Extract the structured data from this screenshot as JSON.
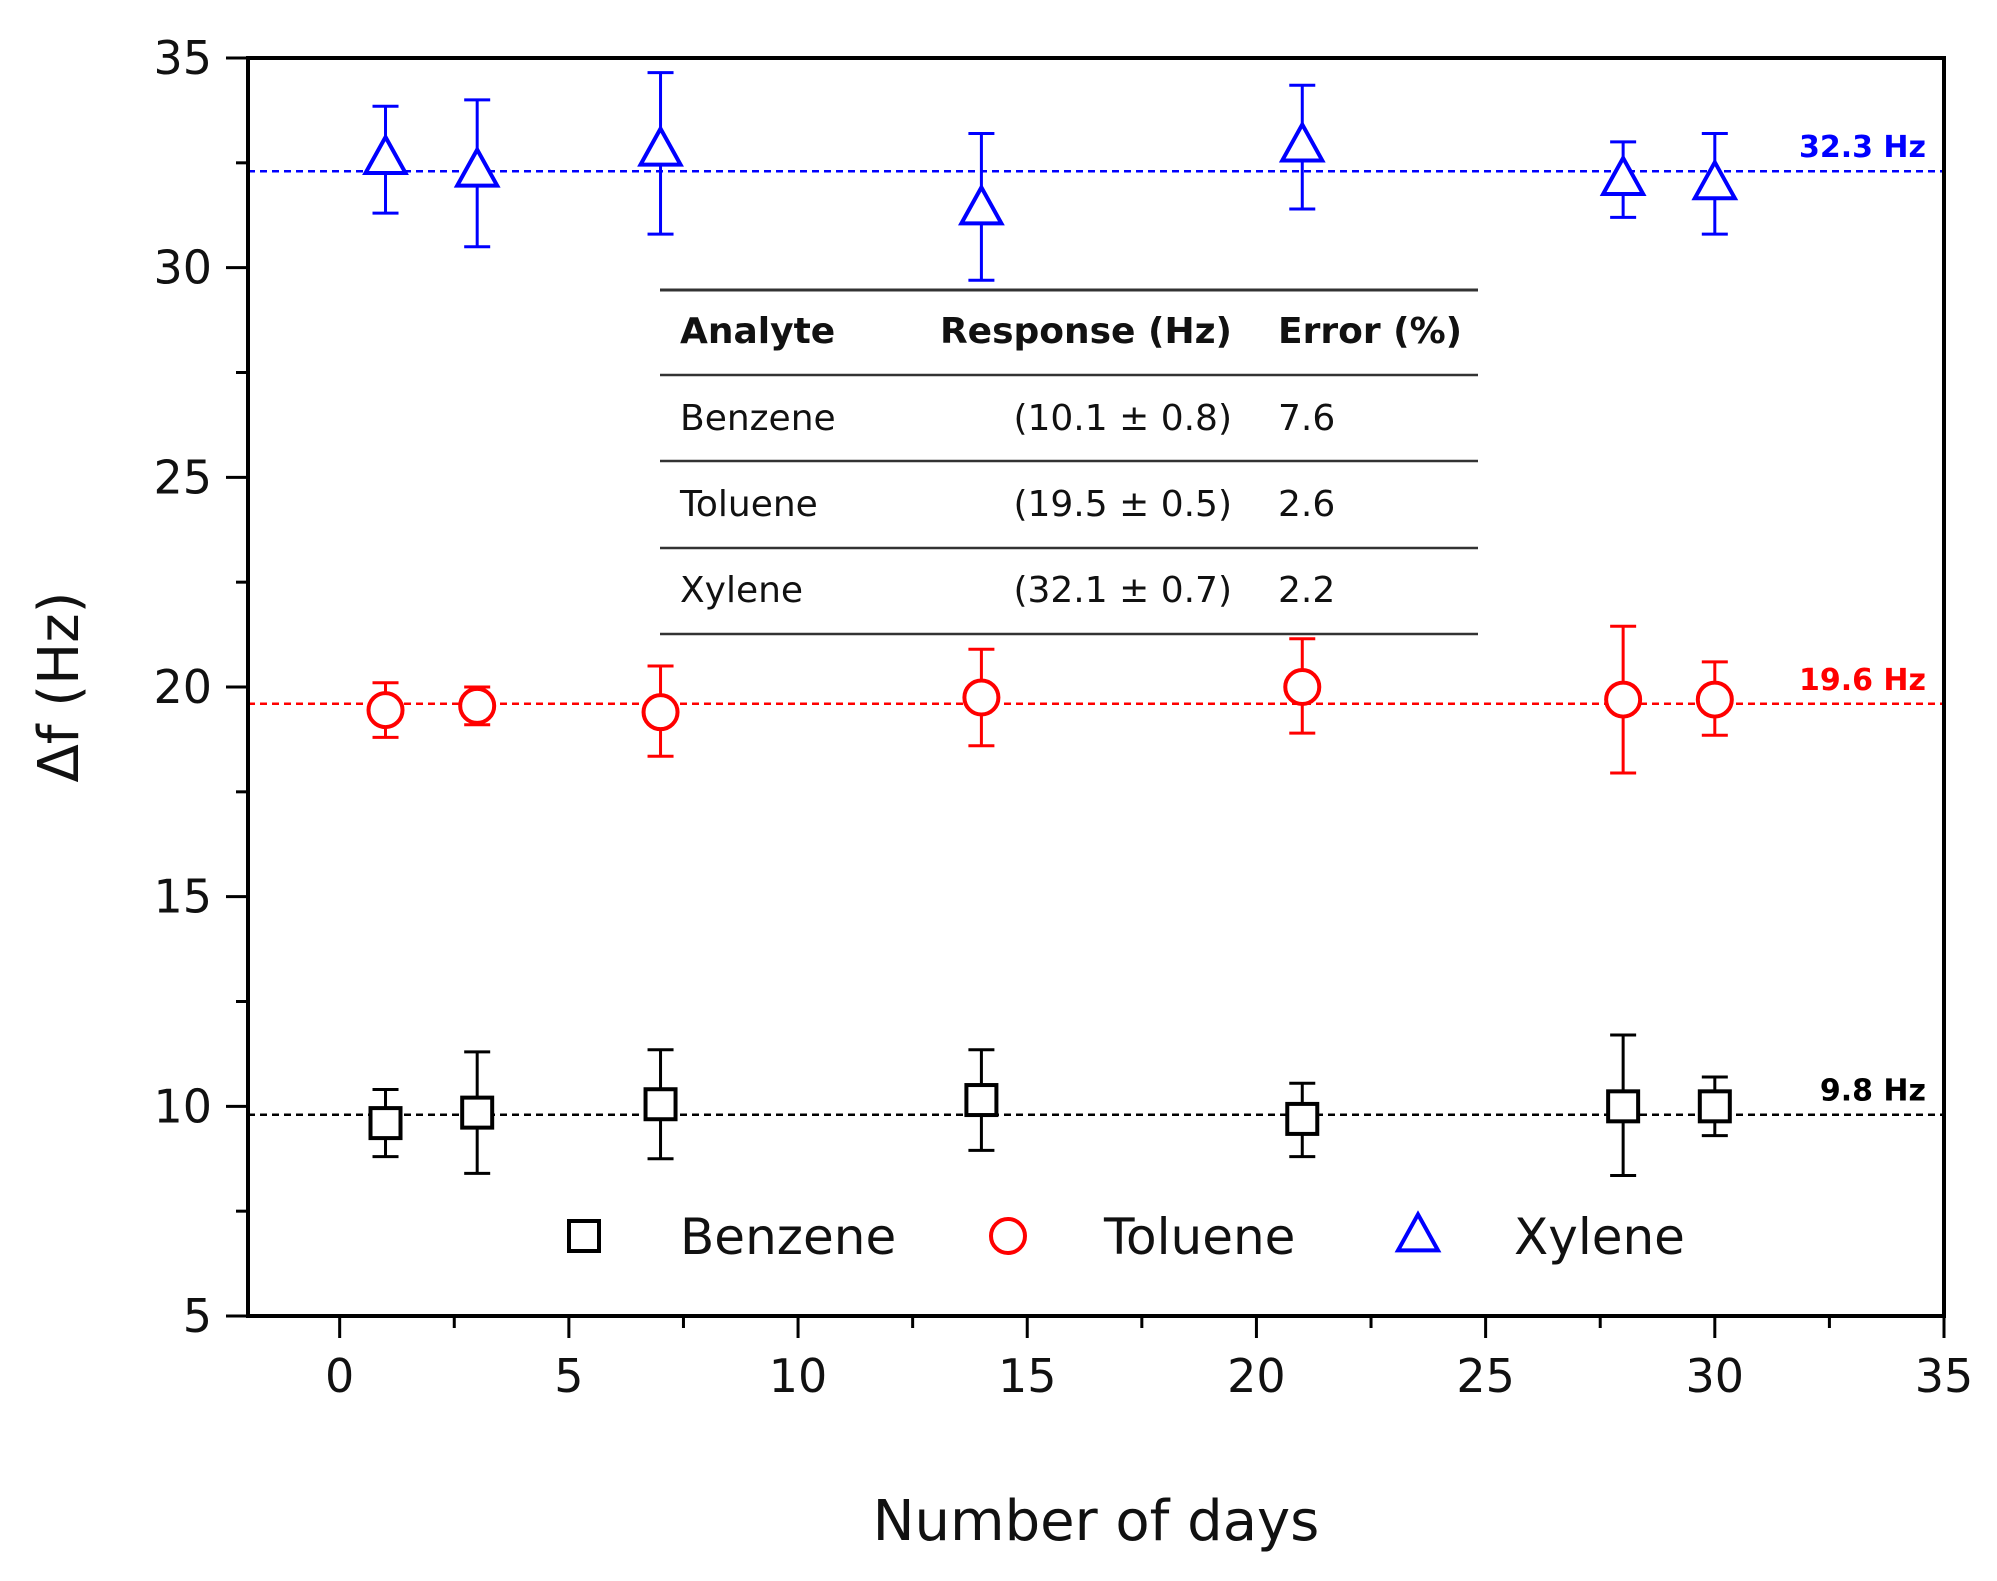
{
  "chart_data": {
    "type": "scatter",
    "xlabel": "Number of days",
    "ylabel": "Δf (Hz)",
    "xlim": [
      -2,
      35
    ],
    "ylim": [
      5,
      35
    ],
    "xticks": [
      0,
      5,
      10,
      15,
      20,
      25,
      30,
      35
    ],
    "yticks": [
      5,
      10,
      15,
      20,
      25,
      30,
      35
    ],
    "legend_position": "bottom-center",
    "series": [
      {
        "name": "Benzene",
        "marker": "square",
        "color": "#000000",
        "x": [
          1,
          3,
          7,
          14,
          21,
          28,
          30
        ],
        "y": [
          9.6,
          9.85,
          10.05,
          10.15,
          9.7,
          10.0,
          10.0
        ],
        "err_low": [
          8.8,
          8.4,
          8.75,
          8.95,
          8.8,
          8.35,
          9.3
        ],
        "err_high": [
          10.4,
          11.3,
          11.35,
          11.35,
          10.55,
          11.7,
          10.7
        ]
      },
      {
        "name": "Toluene",
        "marker": "circle",
        "color": "#ff0000",
        "x": [
          1,
          3,
          7,
          14,
          21,
          28,
          30
        ],
        "y": [
          19.45,
          19.55,
          19.4,
          19.75,
          20.0,
          19.7,
          19.7
        ],
        "err_low": [
          18.8,
          19.1,
          18.35,
          18.6,
          18.9,
          17.95,
          18.85
        ],
        "err_high": [
          20.1,
          20.0,
          20.5,
          20.9,
          21.15,
          21.45,
          20.6
        ]
      },
      {
        "name": "Xylene",
        "marker": "triangle",
        "color": "#0000ff",
        "x": [
          1,
          3,
          7,
          14,
          21,
          28,
          30
        ],
        "y": [
          32.6,
          32.3,
          32.8,
          31.4,
          32.9,
          32.1,
          32.0
        ],
        "err_low": [
          31.3,
          30.5,
          30.8,
          29.7,
          31.4,
          31.2,
          30.8
        ],
        "err_high": [
          33.85,
          34.0,
          34.65,
          33.2,
          34.35,
          33.0,
          33.2
        ]
      }
    ],
    "reference_lines": [
      {
        "value": 9.8,
        "label": "9.8 Hz",
        "color": "#000000"
      },
      {
        "value": 19.6,
        "label": "19.6 Hz",
        "color": "#ff0000"
      },
      {
        "value": 32.3,
        "label": "32.3 Hz",
        "color": "#0000ff"
      }
    ],
    "table": {
      "headers": [
        "Analyte",
        "Response  (Hz)",
        "Error (%)"
      ],
      "rows": [
        [
          "Benzene",
          "(10.1 ± 0.8)",
          "7.6"
        ],
        [
          "Toluene",
          "(19.5 ± 0.5)",
          "2.6"
        ],
        [
          "Xylene",
          "(32.1 ± 0.7)",
          "2.2"
        ]
      ]
    }
  }
}
